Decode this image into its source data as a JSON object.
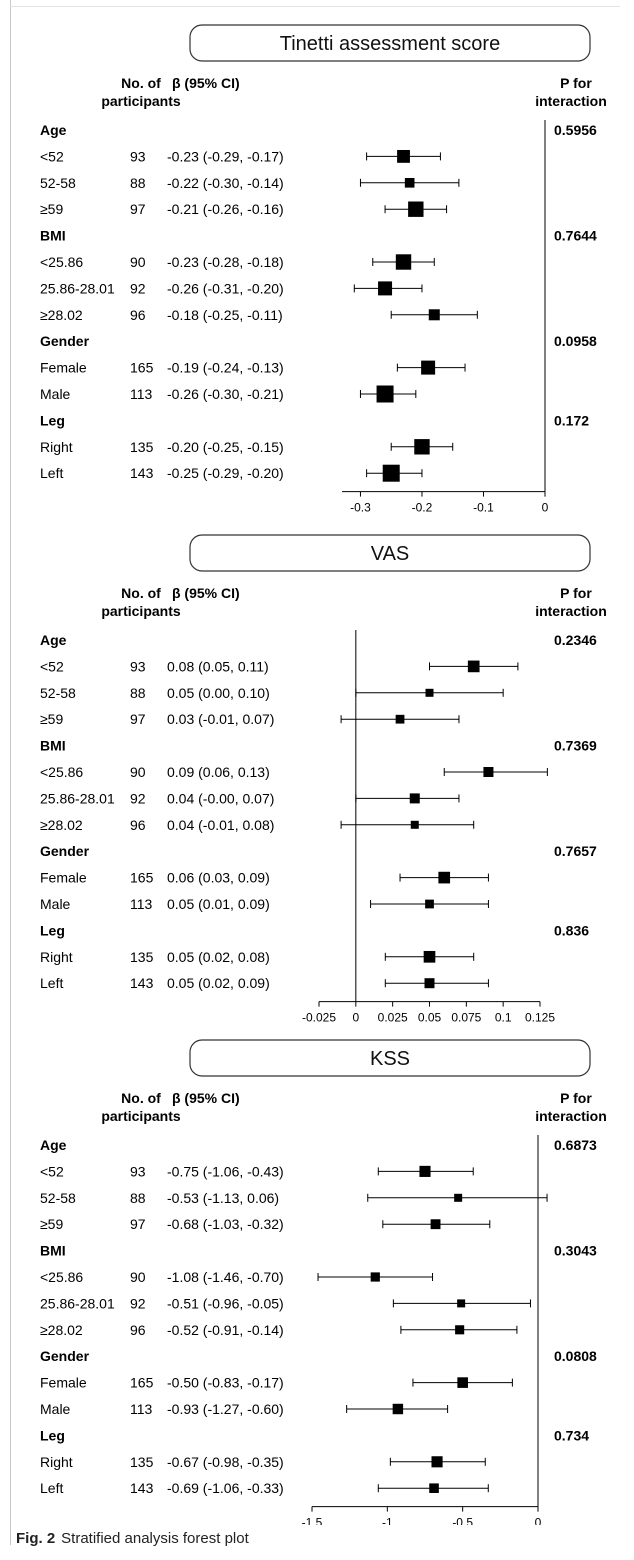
{
  "figure_caption": {
    "label": "Fig. 2",
    "text": "Stratified analysis forest plot"
  },
  "headers": {
    "n_line1": "No. of",
    "n_line2": "participants",
    "beta": "β (95% CI)",
    "p_line1": "P for",
    "p_line2": "interaction"
  },
  "colors": {
    "marker": "#000000",
    "panel_border": "#333333",
    "frame": "#c8c8c8"
  },
  "chart_data": [
    {
      "type": "forest",
      "title": "Tinetti assessment score",
      "xlim": [
        -0.33,
        0
      ],
      "xticks": [
        -0.3,
        -0.2,
        -0.1,
        0
      ],
      "xtick_labels": [
        "-0.3",
        "-0.2",
        "-0.1",
        "0"
      ],
      "reference_line": 0,
      "groups": [
        {
          "name": "Age",
          "p": "0.5956",
          "rows": [
            {
              "label": "<52",
              "n": "93",
              "ci_text": "-0.23 (-0.29, -0.17)",
              "est": -0.23,
              "lo": -0.29,
              "hi": -0.17
            },
            {
              "label": "52-58",
              "n": "88",
              "ci_text": "-0.22 (-0.30, -0.14)",
              "est": -0.22,
              "lo": -0.3,
              "hi": -0.14
            },
            {
              "label": "≥59",
              "n": "97",
              "ci_text": "-0.21 (-0.26, -0.16)",
              "est": -0.21,
              "lo": -0.26,
              "hi": -0.16
            }
          ]
        },
        {
          "name": "BMI",
          "p": "0.7644",
          "rows": [
            {
              "label": "<25.86",
              "n": "90",
              "ci_text": "-0.23 (-0.28, -0.18)",
              "est": -0.23,
              "lo": -0.28,
              "hi": -0.18
            },
            {
              "label": "25.86-28.01",
              "n": "92",
              "ci_text": "-0.26 (-0.31, -0.20)",
              "est": -0.26,
              "lo": -0.31,
              "hi": -0.2
            },
            {
              "label": "≥28.02",
              "n": "96",
              "ci_text": "-0.18 (-0.25, -0.11)",
              "est": -0.18,
              "lo": -0.25,
              "hi": -0.11
            }
          ]
        },
        {
          "name": "Gender",
          "p": "0.0958",
          "rows": [
            {
              "label": "Female",
              "n": "165",
              "ci_text": "-0.19 (-0.24, -0.13)",
              "est": -0.19,
              "lo": -0.24,
              "hi": -0.13
            },
            {
              "label": "Male",
              "n": "113",
              "ci_text": "-0.26 (-0.30, -0.21)",
              "est": -0.26,
              "lo": -0.3,
              "hi": -0.21
            }
          ]
        },
        {
          "name": "Leg",
          "p": "0.172",
          "rows": [
            {
              "label": "Right",
              "n": "135",
              "ci_text": "-0.20 (-0.25, -0.15)",
              "est": -0.2,
              "lo": -0.25,
              "hi": -0.15
            },
            {
              "label": "Left",
              "n": "143",
              "ci_text": "-0.25 (-0.29, -0.20)",
              "est": -0.25,
              "lo": -0.29,
              "hi": -0.2
            }
          ]
        }
      ]
    },
    {
      "type": "forest",
      "title": "VAS",
      "xlim": [
        -0.025,
        0.125
      ],
      "xticks": [
        -0.025,
        0,
        0.025,
        0.05,
        0.075,
        0.1,
        0.125
      ],
      "xtick_labels": [
        "-0.025",
        "0",
        "0.025",
        "0.05",
        "0.075",
        "0.1",
        "0.125"
      ],
      "reference_line": 0,
      "groups": [
        {
          "name": "Age",
          "p": "0.2346",
          "rows": [
            {
              "label": "<52",
              "n": "93",
              "ci_text": "0.08 (0.05, 0.11)",
              "est": 0.08,
              "lo": 0.05,
              "hi": 0.11
            },
            {
              "label": "52-58",
              "n": "88",
              "ci_text": "0.05 (0.00, 0.10)",
              "est": 0.05,
              "lo": 0.0,
              "hi": 0.1
            },
            {
              "label": "≥59",
              "n": "97",
              "ci_text": "0.03 (-0.01, 0.07)",
              "est": 0.03,
              "lo": -0.01,
              "hi": 0.07
            }
          ]
        },
        {
          "name": "BMI",
          "p": "0.7369",
          "rows": [
            {
              "label": "<25.86",
              "n": "90",
              "ci_text": "0.09 (0.06, 0.13)",
              "est": 0.09,
              "lo": 0.06,
              "hi": 0.13
            },
            {
              "label": "25.86-28.01",
              "n": "92",
              "ci_text": "0.04 (-0.00, 0.07)",
              "est": 0.04,
              "lo": 0.0,
              "hi": 0.07
            },
            {
              "label": "≥28.02",
              "n": "96",
              "ci_text": "0.04 (-0.01, 0.08)",
              "est": 0.04,
              "lo": -0.01,
              "hi": 0.08
            }
          ]
        },
        {
          "name": "Gender",
          "p": "0.7657",
          "rows": [
            {
              "label": "Female",
              "n": "165",
              "ci_text": "0.06 (0.03, 0.09)",
              "est": 0.06,
              "lo": 0.03,
              "hi": 0.09
            },
            {
              "label": "Male",
              "n": "113",
              "ci_text": "0.05 (0.01, 0.09)",
              "est": 0.05,
              "lo": 0.01,
              "hi": 0.09
            }
          ]
        },
        {
          "name": "Leg",
          "p": "0.836",
          "rows": [
            {
              "label": "Right",
              "n": "135",
              "ci_text": "0.05 (0.02, 0.08)",
              "est": 0.05,
              "lo": 0.02,
              "hi": 0.08
            },
            {
              "label": "Left",
              "n": "143",
              "ci_text": "0.05 (0.02, 0.09)",
              "est": 0.05,
              "lo": 0.02,
              "hi": 0.09
            }
          ]
        }
      ]
    },
    {
      "type": "forest",
      "title": "KSS",
      "xlim": [
        -1.5,
        0
      ],
      "xticks": [
        -1.5,
        -1,
        -0.5,
        0
      ],
      "xtick_labels": [
        "-1.5",
        "-1",
        "-0.5",
        "0"
      ],
      "reference_line": 0,
      "groups": [
        {
          "name": "Age",
          "p": "0.6873",
          "rows": [
            {
              "label": "<52",
              "n": "93",
              "ci_text": "-0.75 (-1.06, -0.43)",
              "est": -0.75,
              "lo": -1.06,
              "hi": -0.43
            },
            {
              "label": "52-58",
              "n": "88",
              "ci_text": "-0.53 (-1.13, 0.06)",
              "est": -0.53,
              "lo": -1.13,
              "hi": 0.06
            },
            {
              "label": "≥59",
              "n": "97",
              "ci_text": "-0.68 (-1.03, -0.32)",
              "est": -0.68,
              "lo": -1.03,
              "hi": -0.32
            }
          ]
        },
        {
          "name": "BMI",
          "p": "0.3043",
          "rows": [
            {
              "label": "<25.86",
              "n": "90",
              "ci_text": "-1.08 (-1.46, -0.70)",
              "est": -1.08,
              "lo": -1.46,
              "hi": -0.7
            },
            {
              "label": "25.86-28.01",
              "n": "92",
              "ci_text": "-0.51 (-0.96, -0.05)",
              "est": -0.51,
              "lo": -0.96,
              "hi": -0.05
            },
            {
              "label": "≥28.02",
              "n": "96",
              "ci_text": "-0.52 (-0.91, -0.14)",
              "est": -0.52,
              "lo": -0.91,
              "hi": -0.14
            }
          ]
        },
        {
          "name": "Gender",
          "p": "0.0808",
          "rows": [
            {
              "label": "Female",
              "n": "165",
              "ci_text": "-0.50 (-0.83, -0.17)",
              "est": -0.5,
              "lo": -0.83,
              "hi": -0.17
            },
            {
              "label": "Male",
              "n": "113",
              "ci_text": "-0.93 (-1.27, -0.60)",
              "est": -0.93,
              "lo": -1.27,
              "hi": -0.6
            }
          ]
        },
        {
          "name": "Leg",
          "p": "0.734",
          "rows": [
            {
              "label": "Right",
              "n": "135",
              "ci_text": "-0.67 (-0.98, -0.35)",
              "est": -0.67,
              "lo": -0.98,
              "hi": -0.35
            },
            {
              "label": "Left",
              "n": "143",
              "ci_text": "-0.69 (-1.06, -0.33)",
              "est": -0.69,
              "lo": -1.06,
              "hi": -0.33
            }
          ]
        }
      ]
    }
  ]
}
